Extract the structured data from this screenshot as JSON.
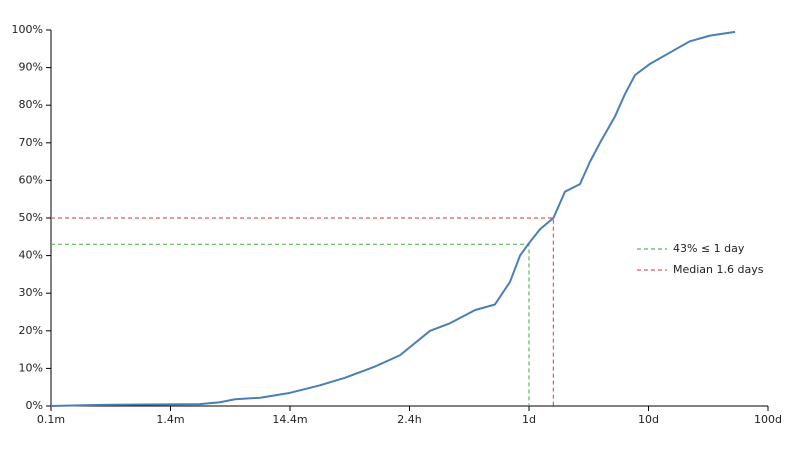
{
  "chart_data": {
    "type": "line",
    "log_x": true,
    "grid": false,
    "legend_position": "right",
    "x": [
      0.0001,
      0.000257,
      0.00177,
      0.0026,
      0.00347,
      0.00564,
      0.01,
      0.0178,
      0.0288,
      0.0514,
      0.0832,
      0.1486,
      0.218,
      0.353,
      0.519,
      0.693,
      0.841,
      1.0,
      1.236,
      1.6,
      2.0,
      2.67,
      3.24,
      3.93,
      5.24,
      6.36,
      7.71,
      10.3,
      15.1,
      22.2,
      32.7,
      53
    ],
    "values": [
      0,
      0.3,
      0.5,
      1,
      1.8,
      2.2,
      3.5,
      5.5,
      7.5,
      10.5,
      13.5,
      20,
      22,
      25.5,
      27,
      33,
      40,
      43.3,
      47,
      50,
      57,
      59,
      65,
      70,
      77,
      83,
      88,
      91,
      94,
      97,
      98.5,
      99.5
    ],
    "color": "#4a7fb5",
    "reference_lines": [
      {
        "name": "43% ≤ 1 day",
        "color": "#5cb85c",
        "x": 1,
        "y": 43
      },
      {
        "name": "Median 1.6 days",
        "color": "#e05c5c",
        "x": 1.6,
        "y": 50
      }
    ],
    "xlim": [
      0.0001,
      100
    ],
    "xticks": [
      {
        "value": 0.0001,
        "label": "0.1m"
      },
      {
        "value": 0.001,
        "label": "1.4m"
      },
      {
        "value": 0.01,
        "label": "14.4m"
      },
      {
        "value": 0.1,
        "label": "2.4h"
      },
      {
        "value": 1,
        "label": "1d"
      },
      {
        "value": 10,
        "label": "10d"
      },
      {
        "value": 100,
        "label": "100d"
      }
    ],
    "ylim": [
      0,
      100
    ],
    "yticks": [
      {
        "value": 0,
        "label": "0%"
      },
      {
        "value": 10,
        "label": "10%"
      },
      {
        "value": 20,
        "label": "20%"
      },
      {
        "value": 30,
        "label": "30%"
      },
      {
        "value": 40,
        "label": "40%"
      },
      {
        "value": 50,
        "label": "50%"
      },
      {
        "value": 60,
        "label": "60%"
      },
      {
        "value": 70,
        "label": "70%"
      },
      {
        "value": 80,
        "label": "80%"
      },
      {
        "value": 90,
        "label": "90%"
      },
      {
        "value": 100,
        "label": "100%"
      }
    ]
  }
}
